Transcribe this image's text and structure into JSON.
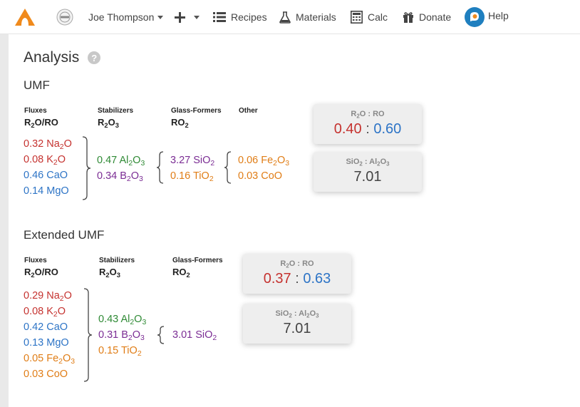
{
  "nav": {
    "user_name": "Joe Thompson",
    "recipes": "Recipes",
    "materials": "Materials",
    "calc": "Calc",
    "donate": "Donate",
    "help": "Help",
    "icons": {
      "logo": "flame-logo-icon",
      "seal": "seal-logo-icon",
      "add": "plus-icon",
      "recipes": "list-icon",
      "materials": "flask-icon",
      "calc": "calculator-icon",
      "donate": "gift-icon",
      "help": "chat-help-icon"
    },
    "colors": {
      "logo": "#f08a1c",
      "help_icon": "#1f7fbf"
    }
  },
  "analysis": {
    "title": "Analysis",
    "help_glyph": "?",
    "umf": {
      "title": "UMF",
      "headers": [
        {
          "label": "Fluxes",
          "sub": "R2O/RO"
        },
        {
          "label": "Stabilizers",
          "sub": "R2O3"
        },
        {
          "label": "Glass-Formers",
          "sub": "RO2"
        },
        {
          "label": "Other"
        }
      ],
      "fluxes": [
        "0.32 Na2O",
        "0.08 K2O",
        "0.46 CaO",
        "0.14 MgO"
      ],
      "stabilizers": [
        "0.47 Al2O3",
        "0.34 B2O3"
      ],
      "glass_formers": [
        "3.27 SiO2",
        "0.16 TiO2"
      ],
      "other": [
        "0.06 Fe2O3",
        "0.03 CoO"
      ],
      "ratio_r2o_ro": {
        "label": "R2O : RO",
        "r2o": "0.40",
        "ro": "0.60"
      },
      "ratio_sio2_al2o3": {
        "label": "SiO2 : Al2O3",
        "value": "7.01"
      }
    },
    "extended": {
      "title": "Extended UMF",
      "headers": [
        {
          "label": "Fluxes",
          "sub": "R2O/RO"
        },
        {
          "label": "Stabilizers",
          "sub": "R2O3"
        },
        {
          "label": "Glass-Formers",
          "sub": "RO2"
        }
      ],
      "fluxes": [
        "0.29 Na2O",
        "0.08 K2O",
        "0.42 CaO",
        "0.13 MgO",
        "0.05 Fe2O3",
        "0.03 CoO"
      ],
      "stabilizers": [
        "0.43 Al2O3",
        "0.31 B2O3",
        "0.15 TiO2"
      ],
      "glass_formers": [
        "3.01 SiO2"
      ],
      "ratio_r2o_ro": {
        "label": "R2O : RO",
        "r2o": "0.37",
        "ro": "0.63"
      },
      "ratio_sio2_al2o3": {
        "label": "SiO2 : Al2O3",
        "value": "7.01"
      }
    },
    "colors": {
      "r2o": "#c5322f",
      "ro": "#2d74c6",
      "r2o3": "#2f8a35",
      "boron": "#7b2d94",
      "other": "#e07d16"
    }
  }
}
